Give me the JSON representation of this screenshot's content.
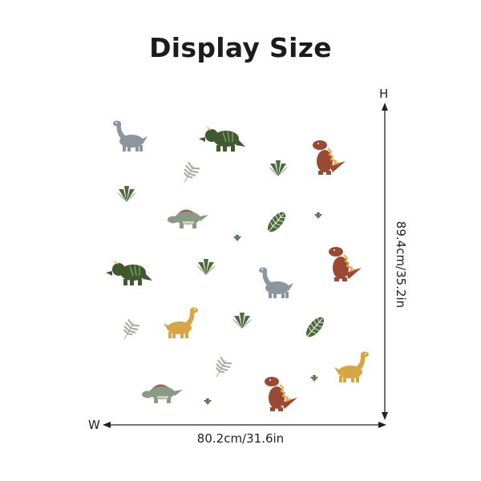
{
  "title": "Display Size",
  "dimensions": {
    "height_axis_letter": "H",
    "width_axis_letter": "W",
    "height_label": "89.4cm/35.2in",
    "width_label": "80.2cm/31.6in"
  },
  "colors": {
    "gray_dino": "#8b96a0",
    "triceratops": "#3f5a2e",
    "trex": "#9a4a32",
    "stegosaurus": "#8a9a84",
    "yellow_dino": "#d7a446",
    "leaf_dark": "#4d6b3c",
    "leaf_light": "#a3ab9c",
    "arrow": "#222222"
  },
  "stickers": [
    {
      "kind": "brachio",
      "color": "gray_dino"
    },
    {
      "kind": "triceratops",
      "color": "triceratops"
    },
    {
      "kind": "trex",
      "color": "trex"
    },
    {
      "kind": "fern",
      "color": "leaf_light"
    },
    {
      "kind": "bush",
      "color": "leaf_dark"
    },
    {
      "kind": "bush",
      "color": "leaf_dark"
    },
    {
      "kind": "stego",
      "color": "stegosaurus"
    },
    {
      "kind": "palm",
      "color": "leaf_dark"
    },
    {
      "kind": "tiny-bush",
      "color": "leaf_dark"
    },
    {
      "kind": "tiny-bush",
      "color": "leaf_dark"
    },
    {
      "kind": "trex",
      "color": "trex"
    },
    {
      "kind": "triceratops",
      "color": "triceratops"
    },
    {
      "kind": "bush",
      "color": "leaf_dark"
    },
    {
      "kind": "brachio",
      "color": "gray_dino"
    },
    {
      "kind": "brachio",
      "color": "yellow_dino"
    },
    {
      "kind": "bush",
      "color": "leaf_dark"
    },
    {
      "kind": "fern",
      "color": "leaf_light"
    },
    {
      "kind": "palm",
      "color": "leaf_dark"
    },
    {
      "kind": "fern",
      "color": "leaf_light"
    },
    {
      "kind": "brachio",
      "color": "yellow_dino"
    },
    {
      "kind": "stego",
      "color": "stegosaurus"
    },
    {
      "kind": "trex",
      "color": "trex"
    },
    {
      "kind": "tiny-bush",
      "color": "leaf_dark"
    },
    {
      "kind": "tiny-bush",
      "color": "leaf_dark"
    }
  ]
}
